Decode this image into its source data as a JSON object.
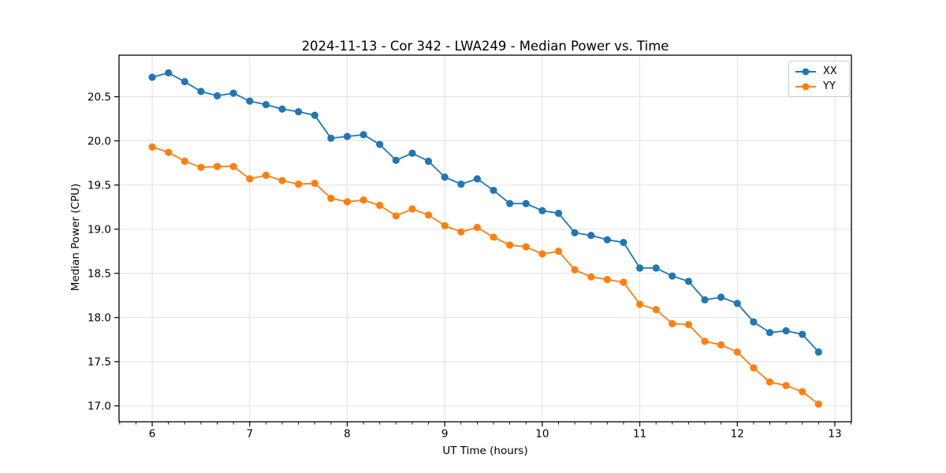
{
  "chart_data": {
    "type": "line",
    "title": "2024-11-13 - Cor 342 - LWA249 - Median Power vs. Time",
    "xlabel": "UT Time (hours)",
    "ylabel": "Median Power (CPU)",
    "grid": true,
    "legend_position": "upper right",
    "marker": "circle",
    "xlim": [
      5.66,
      13.17
    ],
    "ylim": [
      16.82,
      20.97
    ],
    "x_ticks": [
      6,
      7,
      8,
      9,
      10,
      11,
      12,
      13
    ],
    "x_tick_labels": [
      "6",
      "7",
      "8",
      "9",
      "10",
      "11",
      "12",
      "13"
    ],
    "x_minor_tick_step": 0.1667,
    "y_ticks": [
      17.0,
      17.5,
      18.0,
      18.5,
      19.0,
      19.5,
      20.0,
      20.5
    ],
    "y_tick_labels": [
      "17.0",
      "17.5",
      "18.0",
      "18.5",
      "19.0",
      "19.5",
      "20.0",
      "20.5"
    ],
    "x": [
      6.0,
      6.167,
      6.333,
      6.5,
      6.667,
      6.833,
      7.0,
      7.167,
      7.333,
      7.5,
      7.667,
      7.833,
      8.0,
      8.167,
      8.333,
      8.5,
      8.667,
      8.833,
      9.0,
      9.167,
      9.333,
      9.5,
      9.667,
      9.833,
      10.0,
      10.167,
      10.333,
      10.5,
      10.667,
      10.833,
      11.0,
      11.167,
      11.333,
      11.5,
      11.667,
      11.833,
      12.0,
      12.167,
      12.333,
      12.5,
      12.667,
      12.833
    ],
    "series": [
      {
        "name": "XX",
        "color": "#1f77b4",
        "values": [
          20.72,
          20.77,
          20.67,
          20.56,
          20.51,
          20.54,
          20.45,
          20.41,
          20.36,
          20.33,
          20.29,
          20.03,
          20.05,
          20.07,
          19.96,
          19.78,
          19.86,
          19.77,
          19.59,
          19.51,
          19.57,
          19.44,
          19.29,
          19.29,
          19.21,
          19.18,
          18.96,
          18.93,
          18.88,
          18.85,
          18.56,
          18.56,
          18.47,
          18.41,
          18.2,
          18.23,
          18.16,
          17.95,
          17.83,
          17.85,
          17.81,
          17.61
        ]
      },
      {
        "name": "YY",
        "color": "#ff7f0e",
        "values": [
          19.93,
          19.87,
          19.77,
          19.7,
          19.71,
          19.71,
          19.57,
          19.61,
          19.55,
          19.51,
          19.52,
          19.35,
          19.31,
          19.33,
          19.27,
          19.15,
          19.23,
          19.16,
          19.04,
          18.97,
          19.02,
          18.91,
          18.82,
          18.8,
          18.72,
          18.75,
          18.54,
          18.46,
          18.43,
          18.4,
          18.15,
          18.09,
          17.93,
          17.92,
          17.73,
          17.69,
          17.61,
          17.43,
          17.27,
          17.23,
          17.16,
          17.02
        ]
      }
    ],
    "style": {
      "grid_color": "#e0e0e0",
      "spine_color": "#000000",
      "tick_color": "#000000",
      "background": "#ffffff"
    }
  }
}
